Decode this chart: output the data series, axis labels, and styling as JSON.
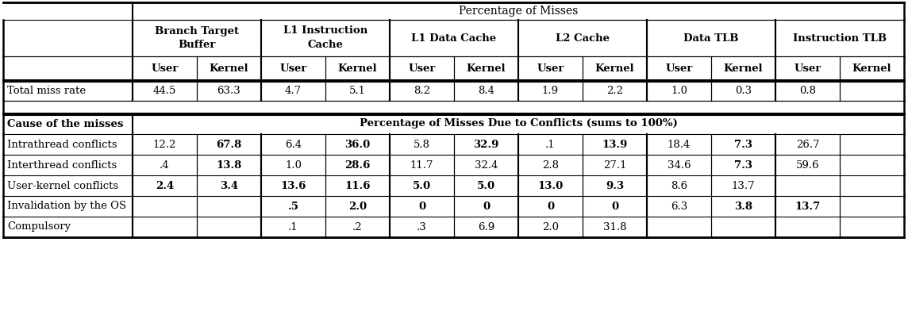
{
  "title_row": "Percentage of Misses",
  "conflict_title": "Percentage of Misses Due to Conflicts (sums to 100%)",
  "col_groups": [
    {
      "name": "Branch Target\nBuffer",
      "cols": [
        "User",
        "Kernel"
      ]
    },
    {
      "name": "L1 Instruction\nCache",
      "cols": [
        "User",
        "Kernel"
      ]
    },
    {
      "name": "L1 Data Cache",
      "cols": [
        "User",
        "Kernel"
      ]
    },
    {
      "name": "L2 Cache",
      "cols": [
        "User",
        "Kernel"
      ]
    },
    {
      "name": "Data TLB",
      "cols": [
        "User",
        "Kernel"
      ]
    },
    {
      "name": "Instruction TLB",
      "cols": [
        "User",
        "Kernel"
      ]
    }
  ],
  "total_miss_rate": {
    "label": "Total miss rate",
    "values": [
      "44.5",
      "63.3",
      "4.7",
      "5.1",
      "8.2",
      "8.4",
      "1.9",
      "2.2",
      "1.0",
      "0.3",
      "0.8",
      ""
    ]
  },
  "cause_label": "Cause of the misses",
  "rows": [
    {
      "label": "Intrathread conflicts",
      "values": [
        "12.2",
        "67.8",
        "6.4",
        "36.0",
        "5.8",
        "32.9",
        ".1",
        "13.9",
        "18.4",
        "7.3",
        "26.7",
        ""
      ],
      "bold": [
        false,
        true,
        false,
        true,
        false,
        true,
        false,
        true,
        false,
        true,
        false,
        false
      ]
    },
    {
      "label": "Interthread conflicts",
      "values": [
        ".4",
        "13.8",
        "1.0",
        "28.6",
        "11.7",
        "32.4",
        "2.8",
        "27.1",
        "34.6",
        "7.3",
        "59.6",
        ""
      ],
      "bold": [
        false,
        true,
        false,
        true,
        false,
        false,
        false,
        false,
        false,
        true,
        false,
        false
      ]
    },
    {
      "label": "User-kernel conflicts",
      "values": [
        "2.4",
        "3.4",
        "13.6",
        "11.6",
        "5.0",
        "5.0",
        "13.0",
        "9.3",
        "8.6",
        "13.7",
        "",
        ""
      ],
      "bold": [
        true,
        true,
        true,
        true,
        true,
        true,
        true,
        true,
        false,
        false,
        false,
        false
      ]
    },
    {
      "label": "Invalidation by the OS",
      "values": [
        "",
        "",
        ".5",
        "2.0",
        "0",
        "0",
        "0",
        "0",
        "6.3",
        "3.8",
        "13.7",
        ""
      ],
      "bold": [
        false,
        false,
        true,
        true,
        true,
        true,
        true,
        true,
        false,
        true,
        true,
        false
      ]
    },
    {
      "label": "Compulsory",
      "values": [
        "",
        "",
        ".1",
        ".2",
        ".3",
        "6.9",
        "2.0",
        "31.8",
        "",
        "",
        "",
        ""
      ],
      "bold": [
        false,
        false,
        false,
        false,
        false,
        false,
        false,
        false,
        false,
        false,
        false,
        false
      ]
    }
  ]
}
